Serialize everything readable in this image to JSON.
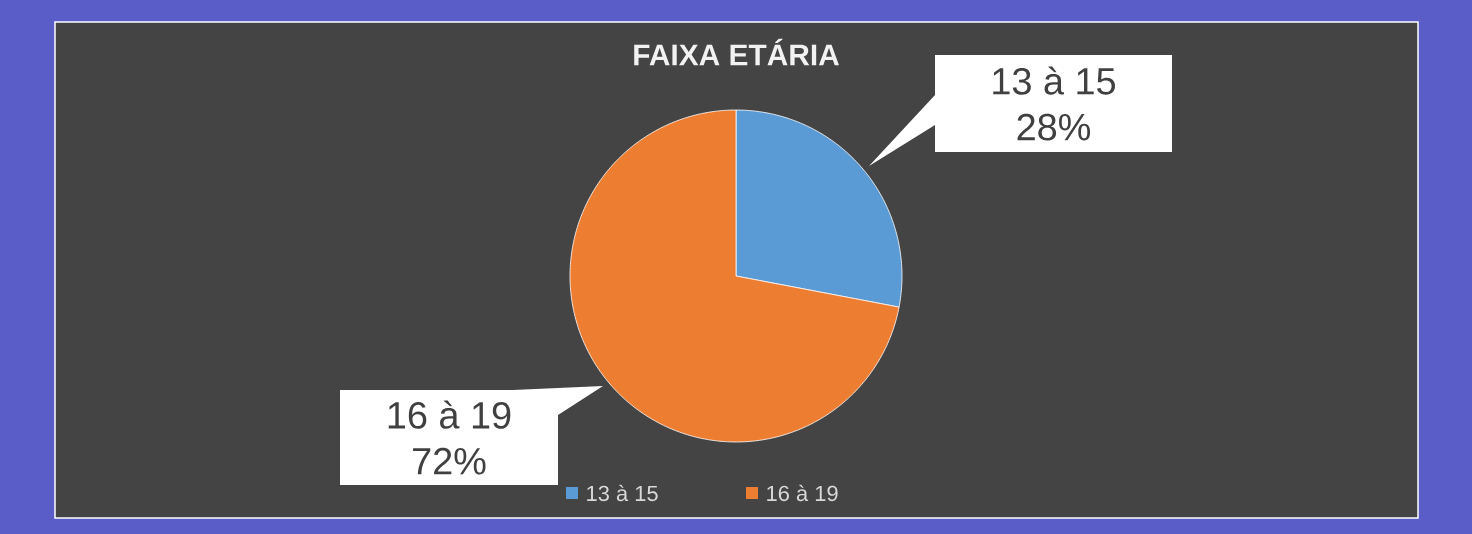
{
  "chart_data": {
    "type": "pie",
    "title": "FAIXA ETÁRIA",
    "categories": [
      "13 à 15",
      "16 à 19"
    ],
    "values": [
      28,
      72
    ],
    "value_labels": [
      "28%",
      "72%"
    ],
    "colors": [
      "#5b9bd5",
      "#ed7d31"
    ],
    "legend": "bottom"
  }
}
